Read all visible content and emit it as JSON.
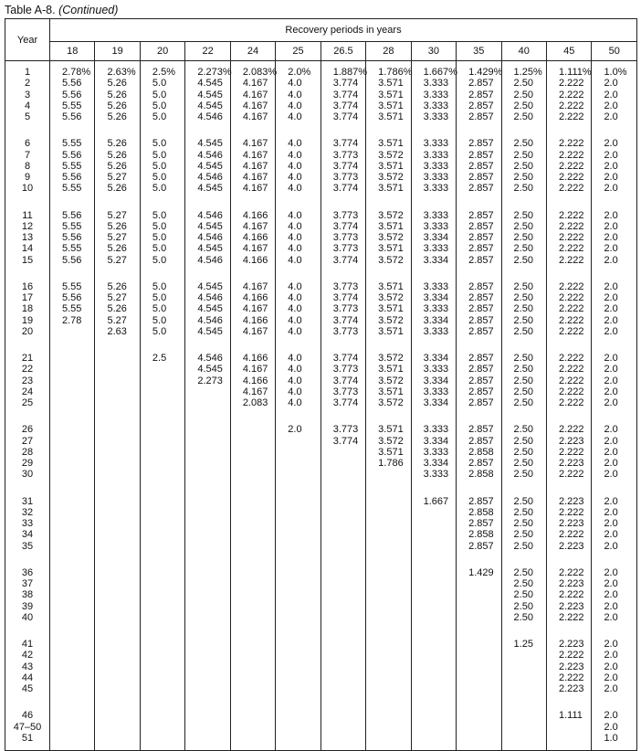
{
  "title": {
    "label": "Table A-8.",
    "note": "(Continued)"
  },
  "table": {
    "year_header": "Year",
    "group_header": "Recovery periods in years",
    "columns": [
      "18",
      "19",
      "20",
      "22",
      "24",
      "25",
      "26.5",
      "28",
      "30",
      "35",
      "40",
      "45",
      "50"
    ],
    "rows": [
      {
        "year": "1",
        "values": [
          "2.78%",
          "2.63%",
          "2.5%",
          "2.273%",
          "2.083%",
          "2.0%",
          "1.887%",
          "1.786%",
          "1.667%",
          "1.429%",
          "1.25%",
          "1.111%",
          "1.0%"
        ]
      },
      {
        "year": "2",
        "values": [
          "5.56",
          "5.26",
          "5.0",
          "4.545",
          "4.167",
          "4.0",
          "3.774",
          "3.571",
          "3.333",
          "2.857",
          "2.50",
          "2.222",
          "2.0"
        ]
      },
      {
        "year": "3",
        "values": [
          "5.56",
          "5.26",
          "5.0",
          "4.545",
          "4.167",
          "4.0",
          "3.774",
          "3.571",
          "3.333",
          "2.857",
          "2.50",
          "2.222",
          "2.0"
        ]
      },
      {
        "year": "4",
        "values": [
          "5.55",
          "5.26",
          "5.0",
          "4.545",
          "4.167",
          "4.0",
          "3.774",
          "3.571",
          "3.333",
          "2.857",
          "2.50",
          "2.222",
          "2.0"
        ]
      },
      {
        "year": "5",
        "values": [
          "5.56",
          "5.26",
          "5.0",
          "4.546",
          "4.167",
          "4.0",
          "3.774",
          "3.571",
          "3.333",
          "2.857",
          "2.50",
          "2.222",
          "2.0"
        ]
      },
      {
        "year": "6",
        "values": [
          "5.55",
          "5.26",
          "5.0",
          "4.545",
          "4.167",
          "4.0",
          "3.774",
          "3.571",
          "3.333",
          "2.857",
          "2.50",
          "2.222",
          "2.0"
        ]
      },
      {
        "year": "7",
        "values": [
          "5.56",
          "5.26",
          "5.0",
          "4.546",
          "4.167",
          "4.0",
          "3.773",
          "3.572",
          "3.333",
          "2.857",
          "2.50",
          "2.222",
          "2.0"
        ]
      },
      {
        "year": "8",
        "values": [
          "5.55",
          "5.26",
          "5.0",
          "4.545",
          "4.167",
          "4.0",
          "3.774",
          "3.571",
          "3.333",
          "2.857",
          "2.50",
          "2.222",
          "2.0"
        ]
      },
      {
        "year": "9",
        "values": [
          "5.56",
          "5.27",
          "5.0",
          "4.546",
          "4.167",
          "4.0",
          "3.773",
          "3.572",
          "3.333",
          "2.857",
          "2.50",
          "2.222",
          "2.0"
        ]
      },
      {
        "year": "10",
        "values": [
          "5.55",
          "5.26",
          "5.0",
          "4.545",
          "4.167",
          "4.0",
          "3.774",
          "3.571",
          "3.333",
          "2.857",
          "2.50",
          "2.222",
          "2.0"
        ]
      },
      {
        "year": "11",
        "values": [
          "5.56",
          "5.27",
          "5.0",
          "4.546",
          "4.166",
          "4.0",
          "3.773",
          "3.572",
          "3.333",
          "2.857",
          "2.50",
          "2.222",
          "2.0"
        ]
      },
      {
        "year": "12",
        "values": [
          "5.55",
          "5.26",
          "5.0",
          "4.545",
          "4.167",
          "4.0",
          "3.774",
          "3.571",
          "3.333",
          "2.857",
          "2.50",
          "2.222",
          "2.0"
        ]
      },
      {
        "year": "13",
        "values": [
          "5.56",
          "5.27",
          "5.0",
          "4.546",
          "4.166",
          "4.0",
          "3.773",
          "3.572",
          "3.334",
          "2.857",
          "2.50",
          "2.222",
          "2.0"
        ]
      },
      {
        "year": "14",
        "values": [
          "5.55",
          "5.26",
          "5.0",
          "4.545",
          "4.167",
          "4.0",
          "3.773",
          "3.571",
          "3.333",
          "2.857",
          "2.50",
          "2.222",
          "2.0"
        ]
      },
      {
        "year": "15",
        "values": [
          "5.56",
          "5.27",
          "5.0",
          "4.546",
          "4.166",
          "4.0",
          "3.774",
          "3.572",
          "3.334",
          "2.857",
          "2.50",
          "2.222",
          "2.0"
        ]
      },
      {
        "year": "16",
        "values": [
          "5.55",
          "5.26",
          "5.0",
          "4.545",
          "4.167",
          "4.0",
          "3.773",
          "3.571",
          "3.333",
          "2.857",
          "2.50",
          "2.222",
          "2.0"
        ]
      },
      {
        "year": "17",
        "values": [
          "5.56",
          "5.27",
          "5.0",
          "4.546",
          "4.166",
          "4.0",
          "3.774",
          "3.572",
          "3.334",
          "2.857",
          "2.50",
          "2.222",
          "2.0"
        ]
      },
      {
        "year": "18",
        "values": [
          "5.55",
          "5.26",
          "5.0",
          "4.545",
          "4.167",
          "4.0",
          "3.773",
          "3.571",
          "3.333",
          "2.857",
          "2.50",
          "2.222",
          "2.0"
        ]
      },
      {
        "year": "19",
        "values": [
          "2.78",
          "5.27",
          "5.0",
          "4.546",
          "4.166",
          "4.0",
          "3.774",
          "3.572",
          "3.334",
          "2.857",
          "2.50",
          "2.222",
          "2.0"
        ]
      },
      {
        "year": "20",
        "values": [
          "",
          "2.63",
          "5.0",
          "4.545",
          "4.167",
          "4.0",
          "3.773",
          "3.571",
          "3.333",
          "2.857",
          "2.50",
          "2.222",
          "2.0"
        ]
      },
      {
        "year": "21",
        "values": [
          "",
          "",
          "2.5",
          "4.546",
          "4.166",
          "4.0",
          "3.774",
          "3.572",
          "3.334",
          "2.857",
          "2.50",
          "2.222",
          "2.0"
        ]
      },
      {
        "year": "22",
        "values": [
          "",
          "",
          "",
          "4.545",
          "4.167",
          "4.0",
          "3.773",
          "3.571",
          "3.333",
          "2.857",
          "2.50",
          "2.222",
          "2.0"
        ]
      },
      {
        "year": "23",
        "values": [
          "",
          "",
          "",
          "2.273",
          "4.166",
          "4.0",
          "3.774",
          "3.572",
          "3.334",
          "2.857",
          "2.50",
          "2.222",
          "2.0"
        ]
      },
      {
        "year": "24",
        "values": [
          "",
          "",
          "",
          "",
          "4.167",
          "4.0",
          "3.773",
          "3.571",
          "3.333",
          "2.857",
          "2.50",
          "2.222",
          "2.0"
        ]
      },
      {
        "year": "25",
        "values": [
          "",
          "",
          "",
          "",
          "2.083",
          "4.0",
          "3.774",
          "3.572",
          "3.334",
          "2.857",
          "2.50",
          "2.222",
          "2.0"
        ]
      },
      {
        "year": "26",
        "values": [
          "",
          "",
          "",
          "",
          "",
          "2.0",
          "3.773",
          "3.571",
          "3.333",
          "2.857",
          "2.50",
          "2.222",
          "2.0"
        ]
      },
      {
        "year": "27",
        "values": [
          "",
          "",
          "",
          "",
          "",
          "",
          "3.774",
          "3.572",
          "3.334",
          "2.857",
          "2.50",
          "2.223",
          "2.0"
        ]
      },
      {
        "year": "28",
        "values": [
          "",
          "",
          "",
          "",
          "",
          "",
          "",
          "3.571",
          "3.333",
          "2.858",
          "2.50",
          "2.222",
          "2.0"
        ]
      },
      {
        "year": "29",
        "values": [
          "",
          "",
          "",
          "",
          "",
          "",
          "",
          "1.786",
          "3.334",
          "2.857",
          "2.50",
          "2.223",
          "2.0"
        ]
      },
      {
        "year": "30",
        "values": [
          "",
          "",
          "",
          "",
          "",
          "",
          "",
          "",
          "3.333",
          "2.858",
          "2.50",
          "2.222",
          "2.0"
        ]
      },
      {
        "year": "31",
        "values": [
          "",
          "",
          "",
          "",
          "",
          "",
          "",
          "",
          "1.667",
          "2.857",
          "2.50",
          "2.223",
          "2.0"
        ]
      },
      {
        "year": "32",
        "values": [
          "",
          "",
          "",
          "",
          "",
          "",
          "",
          "",
          "",
          "2.858",
          "2.50",
          "2.222",
          "2.0"
        ]
      },
      {
        "year": "33",
        "values": [
          "",
          "",
          "",
          "",
          "",
          "",
          "",
          "",
          "",
          "2.857",
          "2.50",
          "2.223",
          "2.0"
        ]
      },
      {
        "year": "34",
        "values": [
          "",
          "",
          "",
          "",
          "",
          "",
          "",
          "",
          "",
          "2.858",
          "2.50",
          "2.222",
          "2.0"
        ]
      },
      {
        "year": "35",
        "values": [
          "",
          "",
          "",
          "",
          "",
          "",
          "",
          "",
          "",
          "2.857",
          "2.50",
          "2.223",
          "2.0"
        ]
      },
      {
        "year": "36",
        "values": [
          "",
          "",
          "",
          "",
          "",
          "",
          "",
          "",
          "",
          "1.429",
          "2.50",
          "2.222",
          "2.0"
        ]
      },
      {
        "year": "37",
        "values": [
          "",
          "",
          "",
          "",
          "",
          "",
          "",
          "",
          "",
          "",
          "2.50",
          "2.223",
          "2.0"
        ]
      },
      {
        "year": "38",
        "values": [
          "",
          "",
          "",
          "",
          "",
          "",
          "",
          "",
          "",
          "",
          "2.50",
          "2.222",
          "2.0"
        ]
      },
      {
        "year": "39",
        "values": [
          "",
          "",
          "",
          "",
          "",
          "",
          "",
          "",
          "",
          "",
          "2.50",
          "2.223",
          "2.0"
        ]
      },
      {
        "year": "40",
        "values": [
          "",
          "",
          "",
          "",
          "",
          "",
          "",
          "",
          "",
          "",
          "2.50",
          "2.222",
          "2.0"
        ]
      },
      {
        "year": "41",
        "values": [
          "",
          "",
          "",
          "",
          "",
          "",
          "",
          "",
          "",
          "",
          "1.25",
          "2.223",
          "2.0"
        ]
      },
      {
        "year": "42",
        "values": [
          "",
          "",
          "",
          "",
          "",
          "",
          "",
          "",
          "",
          "",
          "",
          "2.222",
          "2.0"
        ]
      },
      {
        "year": "43",
        "values": [
          "",
          "",
          "",
          "",
          "",
          "",
          "",
          "",
          "",
          "",
          "",
          "2.223",
          "2.0"
        ]
      },
      {
        "year": "44",
        "values": [
          "",
          "",
          "",
          "",
          "",
          "",
          "",
          "",
          "",
          "",
          "",
          "2.222",
          "2.0"
        ]
      },
      {
        "year": "45",
        "values": [
          "",
          "",
          "",
          "",
          "",
          "",
          "",
          "",
          "",
          "",
          "",
          "2.223",
          "2.0"
        ]
      },
      {
        "year": "46",
        "values": [
          "",
          "",
          "",
          "",
          "",
          "",
          "",
          "",
          "",
          "",
          "",
          "1.111",
          "2.0"
        ]
      },
      {
        "year": "47–50",
        "values": [
          "",
          "",
          "",
          "",
          "",
          "",
          "",
          "",
          "",
          "",
          "",
          "",
          "2.0"
        ]
      },
      {
        "year": "51",
        "values": [
          "",
          "",
          "",
          "",
          "",
          "",
          "",
          "",
          "",
          "",
          "",
          "",
          "1.0"
        ]
      }
    ]
  }
}
